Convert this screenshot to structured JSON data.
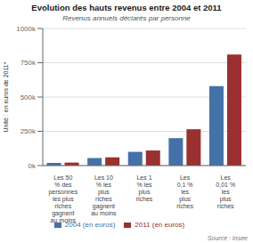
{
  "chart_data": {
    "type": "bar",
    "title": "Evolution des hauts revenus entre 2004 et 2011",
    "subtitle": "Revenus annuels déclarés par personne",
    "ylabel": "Unité : en euros de 2011*",
    "annotations": [
      "Source : Insee"
    ],
    "categories": [
      "Les 50\n% des\npersonnes\nles plus\nriches\ngagnent\nau moins",
      "Les 10\n% les\nplus\nriches\ngagnent\nau moins",
      "Les 1\n% les\nplus\nriches",
      "Les\n0,1 %\nles\nplus\nriches",
      "Les\n0,01 %\nles\nplus\nriches"
    ],
    "series": [
      {
        "name": "2004 (en euros)",
        "color": "#4472a8",
        "values": [
          20000,
          55000,
          100000,
          200000,
          580000
        ]
      },
      {
        "name": "2011 (en euros)",
        "color": "#9b3030",
        "values": [
          22000,
          60000,
          110000,
          265000,
          810000
        ]
      }
    ],
    "ylim": [
      0,
      1000000
    ],
    "yticks": [
      {
        "value": 0,
        "label": "0k"
      },
      {
        "value": 250000,
        "label": "250k"
      },
      {
        "value": 500000,
        "label": "500k"
      },
      {
        "value": 750000,
        "label": "750k"
      },
      {
        "value": 1000000,
        "label": "1000k"
      }
    ],
    "grid": true,
    "legend": "bottom"
  }
}
